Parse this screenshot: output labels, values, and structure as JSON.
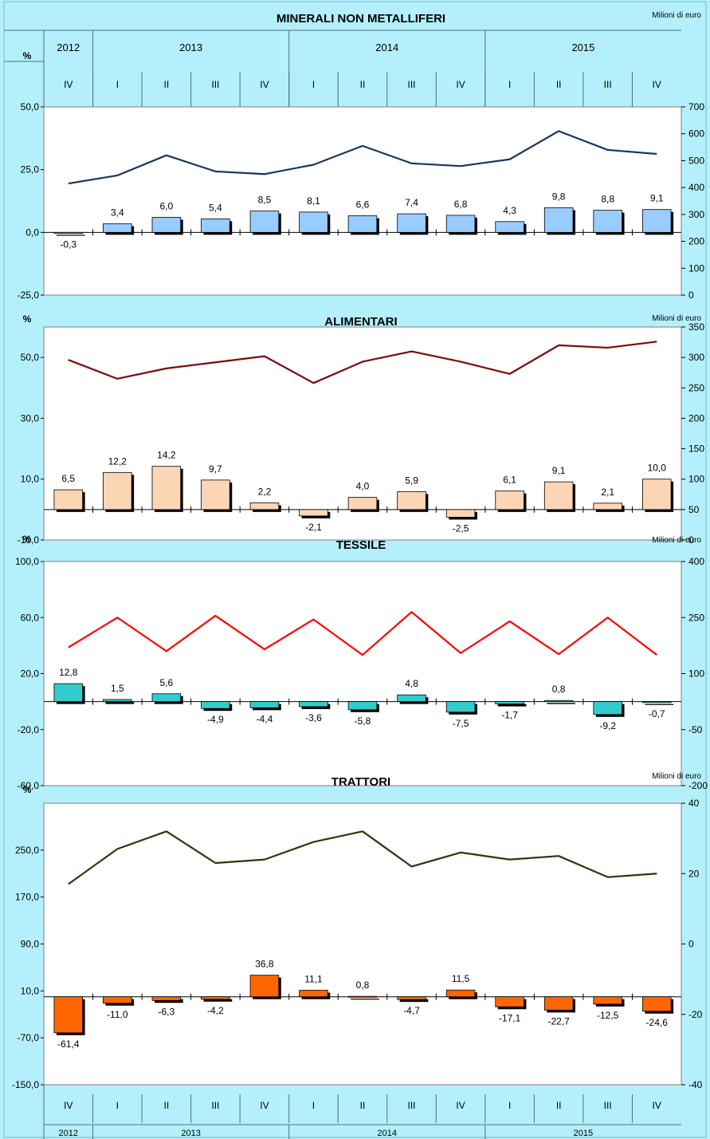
{
  "quarters": [
    "IV",
    "I",
    "II",
    "III",
    "IV",
    "I",
    "II",
    "III",
    "IV",
    "I",
    "II",
    "III",
    "IV"
  ],
  "years": [
    {
      "label": "2012",
      "from": 0,
      "span": 1
    },
    {
      "label": "2013",
      "from": 1,
      "span": 4
    },
    {
      "label": "2014",
      "from": 5,
      "span": 4
    },
    {
      "label": "2015",
      "from": 9,
      "span": 4
    }
  ],
  "chart_data": [
    {
      "type": "bar",
      "title": "MINERALI NON METALLIFERI",
      "ylabel": "%",
      "y2label": "Milioni di euro",
      "bar_color": "#99ccff",
      "line_color": "#17365d",
      "ylim": [
        -25,
        50
      ],
      "yticks": [
        -25,
        0,
        25,
        50
      ],
      "y2lim": [
        0,
        700
      ],
      "y2ticks": [
        0,
        100,
        200,
        300,
        400,
        500,
        600,
        700
      ],
      "bar_values": [
        -0.3,
        3.4,
        6.0,
        5.4,
        8.5,
        8.1,
        6.6,
        7.4,
        6.8,
        4.3,
        9.8,
        8.8,
        9.1
      ],
      "bar_labels": [
        "-0,3",
        "3,4",
        "6,0",
        "5,4",
        "8,5",
        "8,1",
        "6,6",
        "7,4",
        "6,8",
        "4,3",
        "9,8",
        "8,8",
        "9,1"
      ],
      "line_values": [
        415,
        445,
        520,
        460,
        450,
        485,
        555,
        490,
        480,
        505,
        610,
        540,
        525
      ]
    },
    {
      "type": "bar",
      "title": "ALIMENTARI",
      "ylabel": "%",
      "y2label": "Milioni di euro",
      "bar_color": "#fcd5b4",
      "line_color": "#7b0c0c",
      "ylim": [
        -10,
        60
      ],
      "yticks": [
        -10,
        10,
        30,
        50
      ],
      "y2lim": [
        0,
        350
      ],
      "y2ticks": [
        0,
        50,
        100,
        150,
        200,
        250,
        300,
        350
      ],
      "bar_values": [
        6.5,
        12.2,
        14.2,
        9.7,
        2.2,
        -2.1,
        4.0,
        5.9,
        -2.5,
        6.1,
        9.1,
        2.1,
        10.0
      ],
      "bar_labels": [
        "6,5",
        "12,2",
        "14,2",
        "9,7",
        "2,2",
        "-2,1",
        "4,0",
        "5,9",
        "-2,5",
        "6,1",
        "9,1",
        "2,1",
        "10,0"
      ],
      "line_values": [
        296,
        265,
        282,
        292,
        302,
        258,
        293,
        310,
        293,
        273,
        320,
        316,
        326
      ]
    },
    {
      "type": "bar",
      "title": "TESSILE",
      "ylabel": "%",
      "y2label": "Milioni di euro",
      "bar_color": "#33cccc",
      "line_color": "#ff0000",
      "ylim": [
        -60,
        100
      ],
      "yticks": [
        -60,
        -20,
        20,
        60,
        100
      ],
      "y2lim": [
        -200,
        400
      ],
      "y2ticks": [
        -200,
        -50,
        100,
        250,
        400
      ],
      "y2ticklabels": [
        "-200",
        "-50",
        "100",
        "250",
        "400"
      ],
      "bar_values": [
        12.8,
        1.5,
        5.6,
        -4.9,
        -4.4,
        -3.6,
        -5.8,
        4.8,
        -7.5,
        -1.7,
        0.8,
        -9.2,
        -0.7
      ],
      "bar_labels": [
        "12,8",
        "1,5",
        "5,6",
        "-4,9",
        "-4,4",
        "-3,6",
        "-5,8",
        "4,8",
        "-7,5",
        "-1,7",
        "0,8",
        "-9,2",
        "-0,7"
      ],
      "line_values": [
        170,
        250,
        160,
        255,
        165,
        245,
        150,
        265,
        155,
        240,
        152,
        250,
        150
      ]
    },
    {
      "type": "bar",
      "title": "TRATTORI",
      "ylabel": "%",
      "y2label": "Milioni di euro",
      "bar_color": "#ff6600",
      "line_color": "#1f3d0c",
      "ylim": [
        -150,
        330
      ],
      "yticks": [
        -150,
        -70,
        10,
        90,
        170,
        250
      ],
      "y2lim": [
        -40,
        40
      ],
      "y2ticks": [
        -40,
        -20,
        0,
        20,
        40
      ],
      "bar_values": [
        -61.4,
        -11.0,
        -6.3,
        -4.2,
        36.8,
        11.1,
        0.8,
        -4.7,
        11.5,
        -17.1,
        -22.7,
        -12.5,
        -24.6
      ],
      "bar_labels": [
        "-61,4",
        "-11,0",
        "-6,3",
        "-4,2",
        "36,8",
        "11,1",
        "0,8",
        "-4,7",
        "11,5",
        "-17,1",
        "-22,7",
        "-12,5",
        "-24,6"
      ],
      "line_values": [
        17,
        27,
        32,
        23,
        24,
        29,
        32,
        22,
        26,
        24,
        25,
        19,
        20
      ]
    }
  ]
}
